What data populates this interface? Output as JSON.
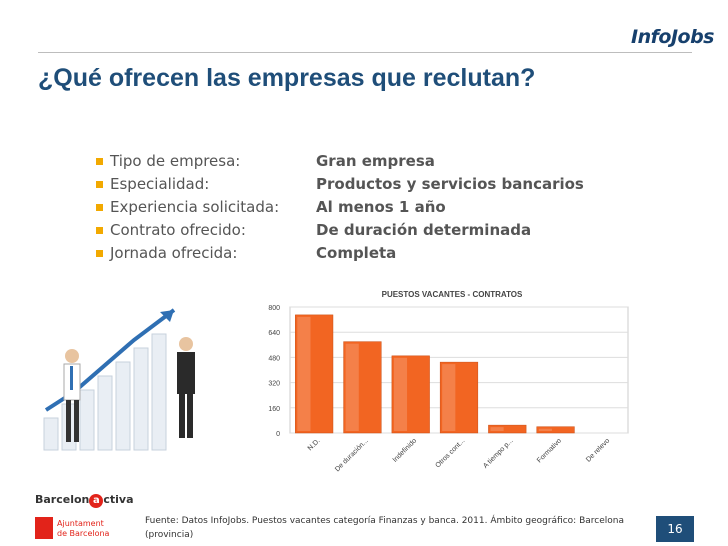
{
  "brand": "InfoJobs",
  "title": "¿Qué ofrecen las empresas que reclutan?",
  "specs": [
    {
      "label": "Tipo de empresa:",
      "value": "Gran empresa"
    },
    {
      "label": "Especialidad:",
      "value": "Productos y servicios bancarios"
    },
    {
      "label": "Experiencia solicitada:",
      "value": "Al menos 1 año"
    },
    {
      "label": "Contrato ofrecido:",
      "value": "De duración determinada"
    },
    {
      "label": "Jornada ofrecida:",
      "value": "Completa"
    }
  ],
  "chart_data": {
    "type": "bar",
    "title": "PUESTOS VACANTES - CONTRATOS",
    "categories": [
      "N.D.",
      "De duración...",
      "Indefinido",
      "Otros cont...",
      "A tiempo p...",
      "Formativo",
      "De relevo"
    ],
    "values": [
      750,
      580,
      490,
      450,
      50,
      40,
      0
    ],
    "yticks": [
      0,
      160,
      320,
      480,
      640,
      800
    ],
    "ylim": [
      0,
      800
    ],
    "grid": true,
    "bar_color": "#f26522"
  },
  "footer": {
    "source": "Fuente:  Datos InfoJobs. Puestos vacantes categoría Finanzas y banca. 2011.  Ámbito geográfico: Barcelona (provincia)",
    "page": "16",
    "barcelona_activa_pre": "Barcelon",
    "barcelona_activa_a": "a",
    "barcelona_activa_post": "ctiva",
    "ajuntament_line1": "Ajuntament",
    "ajuntament_line2": "de Barcelona"
  },
  "colors": {
    "title": "#1f4e79",
    "bullet": "#f2a900",
    "accent": "#f26522"
  }
}
